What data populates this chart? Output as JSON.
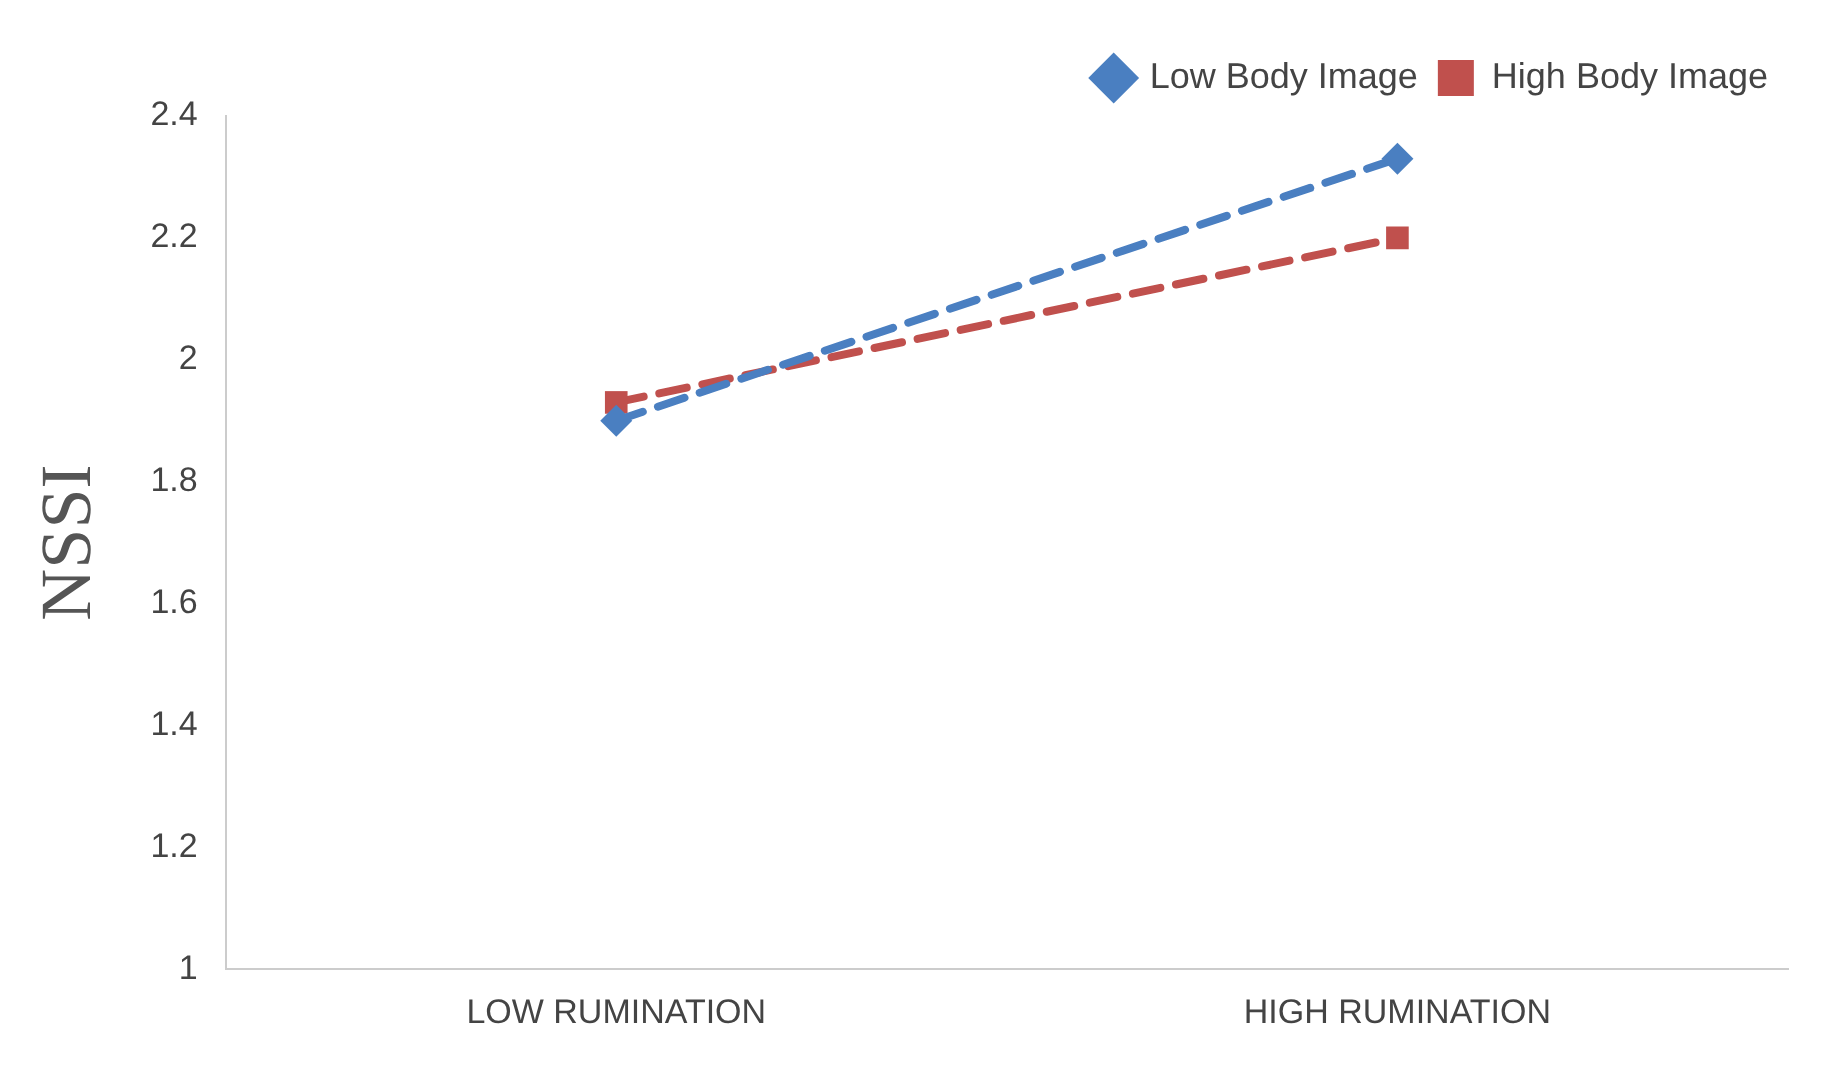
{
  "chart_data": {
    "type": "line",
    "ylabel": "NSSI",
    "categories": [
      "LOW RUMINATION",
      "HIGH RUMINATION"
    ],
    "series": [
      {
        "name": "Low Body Image",
        "color": "#4a7fc1",
        "values": [
          1.9,
          2.33
        ],
        "marker": "diamond"
      },
      {
        "name": "High Body Image",
        "color": "#c0504d",
        "values": [
          1.93,
          2.2
        ],
        "marker": "square"
      }
    ],
    "ylim": [
      1,
      2.4
    ],
    "yticks": [
      1,
      1.2,
      1.4,
      1.6,
      1.8,
      2,
      2.2,
      2.4
    ],
    "grid": false,
    "legend": "top right",
    "line_style": "dashed"
  }
}
